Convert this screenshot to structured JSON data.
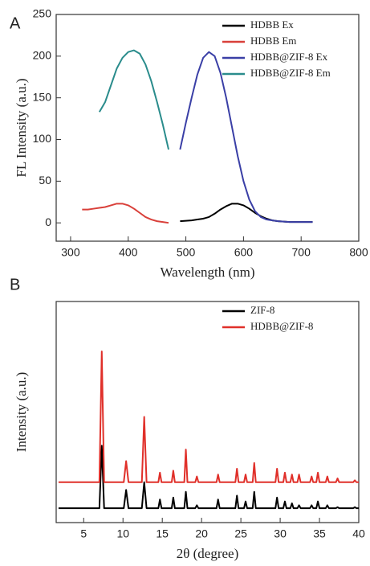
{
  "chart_data": [
    {
      "type": "line",
      "panel_label": "A",
      "x_label": "Wavelength (nm)",
      "y_label": "FL Intensity (a.u.)",
      "xlim": [
        275,
        800
      ],
      "xticks": [
        300,
        400,
        500,
        600,
        700,
        800
      ],
      "ylim": [
        -22,
        250
      ],
      "yticks": [
        0,
        50,
        100,
        150,
        200,
        250
      ],
      "series": [
        {
          "name": "HDBB Ex",
          "color": "#000000",
          "x": [
            490,
            500,
            510,
            520,
            530,
            540,
            550,
            560,
            570,
            580,
            590,
            600,
            610,
            620,
            630,
            640,
            650,
            660,
            670,
            680,
            690,
            700,
            710,
            720
          ],
          "values": [
            2,
            2.5,
            3,
            4,
            5,
            7,
            11,
            16,
            20,
            23,
            23,
            21,
            17,
            12,
            8,
            5,
            3,
            2,
            1.5,
            1,
            1,
            1,
            1,
            1
          ]
        },
        {
          "name": "HDBB Em",
          "color": "#d9403a",
          "x": [
            320,
            330,
            340,
            350,
            360,
            370,
            380,
            390,
            400,
            410,
            420,
            430,
            440,
            450,
            460,
            470
          ],
          "values": [
            16,
            16,
            17,
            18,
            19,
            21,
            23,
            23,
            21,
            17,
            12,
            7,
            4,
            2,
            1,
            0
          ]
        },
        {
          "name": "HDBB@ZIF-8 Ex",
          "color": "#3a3fa6",
          "x": [
            490,
            500,
            510,
            520,
            530,
            540,
            550,
            560,
            570,
            580,
            590,
            600,
            610,
            620,
            630,
            640,
            650,
            660,
            670,
            680,
            690,
            700,
            710,
            720
          ],
          "values": [
            88,
            120,
            150,
            178,
            198,
            205,
            200,
            180,
            150,
            115,
            80,
            50,
            28,
            14,
            7,
            4,
            3,
            2,
            1.5,
            1,
            1,
            1,
            1,
            1
          ]
        },
        {
          "name": "HDBB@ZIF-8 Em",
          "color": "#2a8c8c",
          "x": [
            350,
            360,
            370,
            380,
            390,
            400,
            410,
            420,
            430,
            440,
            450,
            460,
            470
          ],
          "values": [
            133,
            145,
            165,
            185,
            198,
            205,
            207,
            203,
            190,
            170,
            145,
            118,
            88
          ]
        }
      ]
    },
    {
      "type": "line",
      "panel_label": "B",
      "x_label": "2θ (degree)",
      "y_label": "Intensity (a.u.)",
      "xlim": [
        1.5,
        40
      ],
      "xticks": [
        5,
        10,
        15,
        20,
        25,
        30,
        35,
        40
      ],
      "ylim": [
        0,
        115
      ],
      "series": [
        {
          "name": "ZIF-8",
          "color": "#000000",
          "x": [
            1.8,
            7.0,
            7.3,
            7.6,
            10.1,
            10.4,
            10.7,
            12.4,
            12.7,
            13.0,
            14.5,
            14.7,
            14.9,
            16.2,
            16.4,
            16.6,
            17.8,
            18.0,
            18.2,
            19.2,
            19.4,
            19.6,
            21.9,
            22.1,
            22.3,
            24.3,
            24.5,
            24.7,
            25.4,
            25.6,
            25.8,
            26.5,
            26.7,
            26.9,
            29.4,
            29.6,
            29.8,
            30.4,
            30.6,
            30.8,
            31.3,
            31.5,
            31.7,
            32.2,
            32.4,
            32.6,
            33.8,
            34.0,
            34.2,
            34.6,
            34.8,
            35.0,
            35.8,
            36.0,
            36.2,
            37.1,
            37.3,
            37.5,
            39.3,
            39.5,
            39.7,
            40
          ],
          "values": [
            7.5,
            7.5,
            40,
            7.5,
            7.5,
            17,
            7.5,
            7.5,
            21,
            7.5,
            7.5,
            12,
            7.5,
            7.5,
            13,
            7.5,
            7.5,
            16,
            7.5,
            7.5,
            9,
            7.5,
            7.5,
            12,
            7.5,
            7.5,
            14,
            7.5,
            7.5,
            11,
            7.5,
            7.5,
            16,
            7.5,
            7.5,
            13,
            7.5,
            7.5,
            11,
            7.5,
            7.5,
            10,
            7.5,
            7.5,
            9,
            7.5,
            7.5,
            9,
            7.5,
            7.5,
            11,
            7.5,
            7.5,
            9,
            7.5,
            7.5,
            8,
            7.5,
            7.5,
            8,
            7.5,
            7.5
          ]
        },
        {
          "name": "HDBB@ZIF-8",
          "color": "#e0302a",
          "x": [
            1.8,
            7.0,
            7.3,
            7.6,
            10.1,
            10.4,
            10.7,
            12.4,
            12.7,
            13.0,
            14.5,
            14.7,
            14.9,
            16.2,
            16.4,
            16.6,
            17.8,
            18.0,
            18.2,
            19.2,
            19.4,
            19.6,
            21.9,
            22.1,
            22.3,
            24.3,
            24.5,
            24.7,
            25.4,
            25.6,
            25.8,
            26.5,
            26.7,
            26.9,
            29.4,
            29.6,
            29.8,
            30.4,
            30.6,
            30.8,
            31.3,
            31.5,
            31.7,
            32.2,
            32.4,
            32.6,
            33.8,
            34.0,
            34.2,
            34.6,
            34.8,
            35.0,
            35.8,
            36.0,
            36.2,
            37.1,
            37.3,
            37.5,
            39.3,
            39.5,
            39.7,
            40
          ],
          "values": [
            21,
            21,
            89,
            21,
            21,
            32,
            21,
            21,
            55,
            21,
            21,
            26,
            21,
            21,
            27,
            21,
            21,
            38,
            21,
            21,
            24,
            21,
            21,
            25,
            21,
            21,
            28,
            21,
            21,
            25,
            21,
            21,
            31,
            21,
            21,
            28,
            21,
            21,
            26,
            21,
            21,
            25,
            21,
            21,
            25,
            21,
            21,
            24,
            21,
            21,
            26,
            21,
            21,
            24,
            21,
            21,
            23,
            21,
            21,
            22,
            21,
            21
          ]
        }
      ]
    }
  ]
}
